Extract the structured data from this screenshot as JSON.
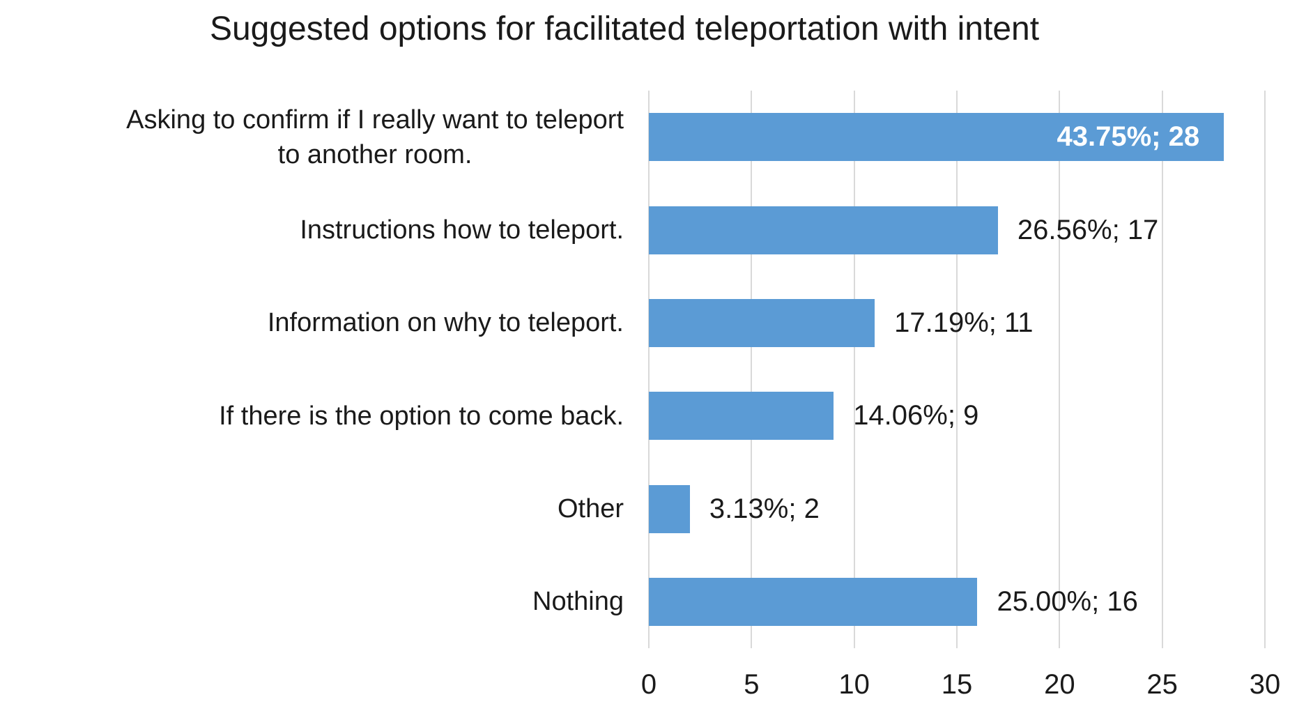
{
  "chart_data": {
    "type": "bar",
    "orientation": "horizontal",
    "title": "Suggested options for facilitated teleportation with intent",
    "categories": [
      "Asking to confirm if I really want to teleport\nto another room.",
      "Instructions how to teleport.",
      "Information on why to teleport.",
      "If there is the option to come back.",
      "Other",
      "Nothing"
    ],
    "values": [
      28,
      17,
      11,
      9,
      2,
      16
    ],
    "percentages": [
      43.75,
      26.56,
      17.19,
      14.06,
      3.13,
      25.0
    ],
    "data_labels": [
      "43.75%; 28",
      "26.56%; 17",
      "17.19%; 11",
      "14.06%; 9",
      "3.13%; 2",
      "25.00%; 16"
    ],
    "data_label_placement": [
      "inside-end",
      "outside-end",
      "outside-end",
      "outside-end",
      "outside-end",
      "outside-end"
    ],
    "xlabel": "",
    "ylabel": "",
    "xlim": [
      0,
      30
    ],
    "xticks": [
      0,
      5,
      10,
      15,
      20,
      25,
      30
    ],
    "grid": "vertical-major-gridlines",
    "legend": "none",
    "colors": {
      "bar": "#5b9bd5",
      "gridline": "#d9d9d9",
      "text": "#1a1a1a",
      "inside_label_text": "#ffffff",
      "background": "#ffffff"
    }
  }
}
